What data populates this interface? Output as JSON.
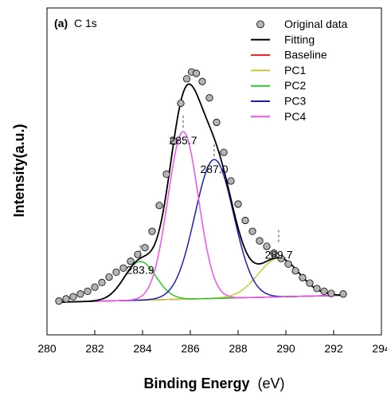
{
  "chart_data": {
    "type": "line",
    "panel_label": {
      "prefix": "(a)",
      "text": "C 1s"
    },
    "xlabel": {
      "main": "Binding Energy",
      "unit": "(eV)"
    },
    "ylabel": "Intensity(a.u.)",
    "xlim": [
      280,
      294
    ],
    "ylim": [
      -0.12,
      1.08
    ],
    "xticks": [
      280,
      282,
      284,
      286,
      288,
      290,
      292,
      294
    ],
    "grid": false,
    "legend_position": "top-right",
    "legend": [
      {
        "label": "Original data",
        "marker": "circle",
        "color": "#b4b4b4"
      },
      {
        "label": "Fitting",
        "color": "#000000"
      },
      {
        "label": "Baseline",
        "color": "#e02020"
      },
      {
        "label": "PC1",
        "color": "#c8c83c"
      },
      {
        "label": "PC2",
        "color": "#2ec82e"
      },
      {
        "label": "PC3",
        "color": "#1e1eb4"
      },
      {
        "label": "PC4",
        "color": "#f050f0"
      }
    ],
    "baseline": {
      "x": [
        280.5,
        292.4
      ],
      "y": [
        0.0,
        0.025
      ]
    },
    "components": [
      {
        "name": "PC1",
        "center": 289.7,
        "amplitude": 0.142,
        "fwhm": 2.0,
        "color": "#c8c83c"
      },
      {
        "name": "PC2",
        "center": 283.9,
        "amplitude": 0.142,
        "fwhm": 1.55,
        "color": "#2ec82e"
      },
      {
        "name": "PC3",
        "center": 287.0,
        "amplitude": 0.51,
        "fwhm": 1.9,
        "color": "#1e1eb4"
      },
      {
        "name": "PC4",
        "center": 285.7,
        "amplitude": 0.615,
        "fwhm": 1.5,
        "color": "#f050f0"
      }
    ],
    "peak_labels": [
      {
        "text": "283.9",
        "x": 283.9,
        "y": 0.145
      },
      {
        "text": "285.7",
        "x": 285.7,
        "y": 0.62
      },
      {
        "text": "287.0",
        "x": 287.0,
        "y": 0.515
      },
      {
        "text": "289.7",
        "x": 289.7,
        "y": 0.2
      }
    ],
    "original_data": {
      "x": [
        280.5,
        280.8,
        281.1,
        281.4,
        281.7,
        282.0,
        282.3,
        282.6,
        282.9,
        283.2,
        283.5,
        283.8,
        284.1,
        284.4,
        284.7,
        285.0,
        285.3,
        285.6,
        285.85,
        286.05,
        286.25,
        286.5,
        286.8,
        287.1,
        287.4,
        287.7,
        288.0,
        288.3,
        288.6,
        288.9,
        289.2,
        289.5,
        289.8,
        290.1,
        290.4,
        290.7,
        291.0,
        291.3,
        291.6,
        291.9,
        292.4
      ],
      "y": [
        0.004,
        0.012,
        0.02,
        0.03,
        0.04,
        0.055,
        0.072,
        0.092,
        0.11,
        0.125,
        0.15,
        0.175,
        0.2,
        0.26,
        0.355,
        0.47,
        0.59,
        0.73,
        0.82,
        0.845,
        0.84,
        0.81,
        0.75,
        0.66,
        0.55,
        0.445,
        0.36,
        0.3,
        0.26,
        0.225,
        0.205,
        0.18,
        0.16,
        0.14,
        0.115,
        0.09,
        0.07,
        0.05,
        0.04,
        0.032,
        0.03
      ]
    }
  }
}
